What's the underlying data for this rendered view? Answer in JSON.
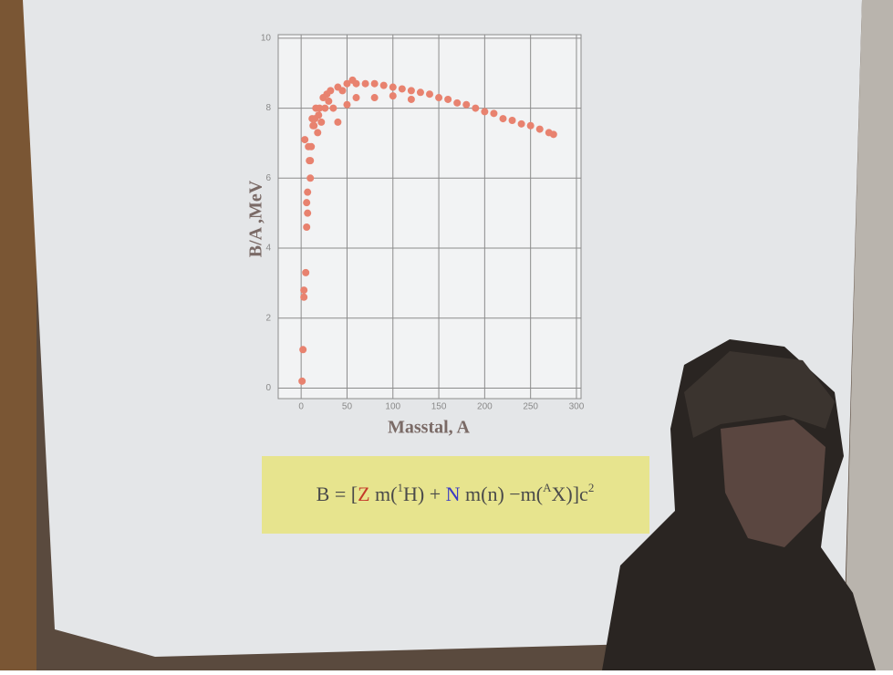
{
  "chart_data": {
    "type": "scatter",
    "xlabel": "Masstal, A",
    "ylabel": "B/A ,MeV",
    "x": [
      1,
      2,
      3,
      3,
      4,
      5,
      6,
      6,
      7,
      7,
      8,
      9,
      10,
      10,
      11,
      12,
      13,
      14,
      15,
      16,
      18,
      19,
      20,
      22,
      24,
      26,
      28,
      30,
      32,
      35,
      40,
      40,
      45,
      50,
      50,
      56,
      60,
      60,
      70,
      80,
      80,
      90,
      100,
      100,
      110,
      120,
      120,
      130,
      140,
      150,
      160,
      170,
      180,
      190,
      200,
      210,
      220,
      230,
      240,
      250,
      260,
      270,
      275
    ],
    "y": [
      0.2,
      1.1,
      2.6,
      2.8,
      7.1,
      3.3,
      5.3,
      4.6,
      5.6,
      5.0,
      6.9,
      6.5,
      6.0,
      6.5,
      6.9,
      7.7,
      7.5,
      7.5,
      7.7,
      8.0,
      7.3,
      7.8,
      8.0,
      7.6,
      8.3,
      8.0,
      8.4,
      8.2,
      8.5,
      8.0,
      8.6,
      7.6,
      8.5,
      8.7,
      8.1,
      8.8,
      8.7,
      8.3,
      8.7,
      8.7,
      8.3,
      8.65,
      8.6,
      8.35,
      8.55,
      8.5,
      8.25,
      8.45,
      8.4,
      8.3,
      8.25,
      8.15,
      8.1,
      8.0,
      7.9,
      7.85,
      7.7,
      7.65,
      7.55,
      7.5,
      7.4,
      7.3,
      7.25
    ],
    "color": "#e8826f",
    "xlim": [
      -25,
      305
    ],
    "ylim": [
      -0.3,
      10.1
    ],
    "xticks": [
      0,
      50,
      100,
      150,
      200,
      250,
      300
    ],
    "yticks": [
      0,
      2,
      4,
      6,
      8,
      10
    ],
    "grid": true
  },
  "formula": {
    "parts": [
      "B = [",
      "Z",
      " m(",
      "1",
      "H) + ",
      "N",
      " m(n) −m(",
      "A",
      "X)]c",
      "2"
    ]
  }
}
